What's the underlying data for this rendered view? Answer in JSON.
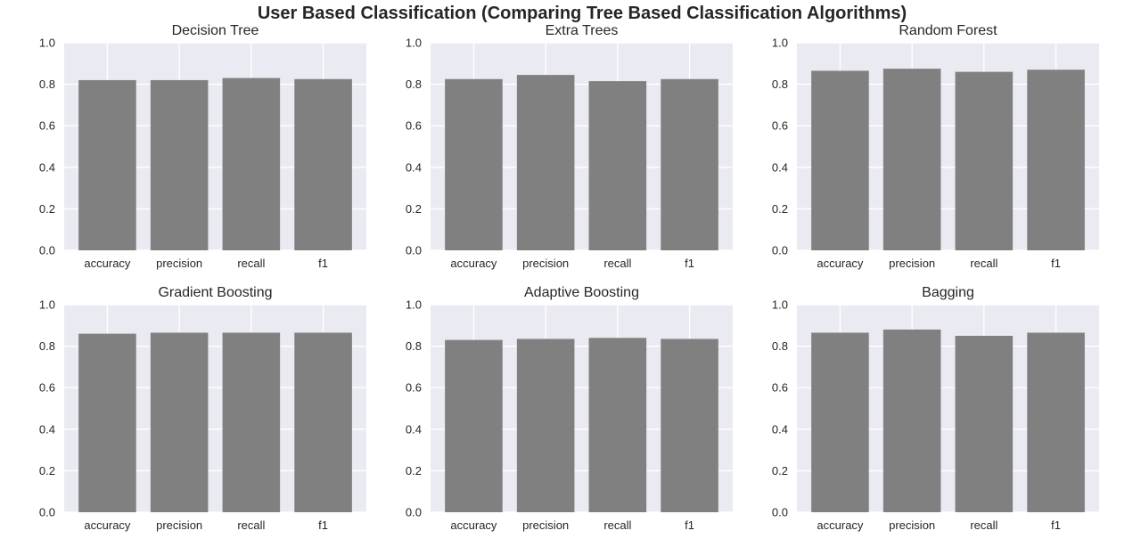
{
  "figure": {
    "title": "User Based Classification (Comparing Tree Based Classification Algorithms)",
    "background": "#ffffff",
    "axes_background": "#eaeaf2",
    "grid_color": "#ffffff",
    "bar_color": "#808080",
    "text_color": "#262626"
  },
  "chart_data": [
    {
      "type": "bar",
      "title": "Decision Tree",
      "categories": [
        "accuracy",
        "precision",
        "recall",
        "f1"
      ],
      "values": [
        0.82,
        0.82,
        0.83,
        0.825
      ],
      "ylim": [
        0,
        1.0
      ],
      "yticks": [
        "0.0",
        "0.2",
        "0.4",
        "0.6",
        "0.8",
        "1.0"
      ],
      "grid": true
    },
    {
      "type": "bar",
      "title": "Extra Trees",
      "categories": [
        "accuracy",
        "precision",
        "recall",
        "f1"
      ],
      "values": [
        0.825,
        0.845,
        0.815,
        0.825
      ],
      "ylim": [
        0,
        1.0
      ],
      "yticks": [
        "0.0",
        "0.2",
        "0.4",
        "0.6",
        "0.8",
        "1.0"
      ],
      "grid": true
    },
    {
      "type": "bar",
      "title": "Random Forest",
      "categories": [
        "accuracy",
        "precision",
        "recall",
        "f1"
      ],
      "values": [
        0.865,
        0.875,
        0.86,
        0.87
      ],
      "ylim": [
        0,
        1.0
      ],
      "yticks": [
        "0.0",
        "0.2",
        "0.4",
        "0.6",
        "0.8",
        "1.0"
      ],
      "grid": true
    },
    {
      "type": "bar",
      "title": "Gradient Boosting",
      "categories": [
        "accuracy",
        "precision",
        "recall",
        "f1"
      ],
      "values": [
        0.86,
        0.865,
        0.865,
        0.865
      ],
      "ylim": [
        0,
        1.0
      ],
      "yticks": [
        "0.0",
        "0.2",
        "0.4",
        "0.6",
        "0.8",
        "1.0"
      ],
      "grid": true
    },
    {
      "type": "bar",
      "title": "Adaptive Boosting",
      "categories": [
        "accuracy",
        "precision",
        "recall",
        "f1"
      ],
      "values": [
        0.83,
        0.835,
        0.84,
        0.835
      ],
      "ylim": [
        0,
        1.0
      ],
      "yticks": [
        "0.0",
        "0.2",
        "0.4",
        "0.6",
        "0.8",
        "1.0"
      ],
      "grid": true
    },
    {
      "type": "bar",
      "title": "Bagging",
      "categories": [
        "accuracy",
        "precision",
        "recall",
        "f1"
      ],
      "values": [
        0.865,
        0.88,
        0.85,
        0.865
      ],
      "ylim": [
        0,
        1.0
      ],
      "yticks": [
        "0.0",
        "0.2",
        "0.4",
        "0.6",
        "0.8",
        "1.0"
      ],
      "grid": true
    }
  ]
}
